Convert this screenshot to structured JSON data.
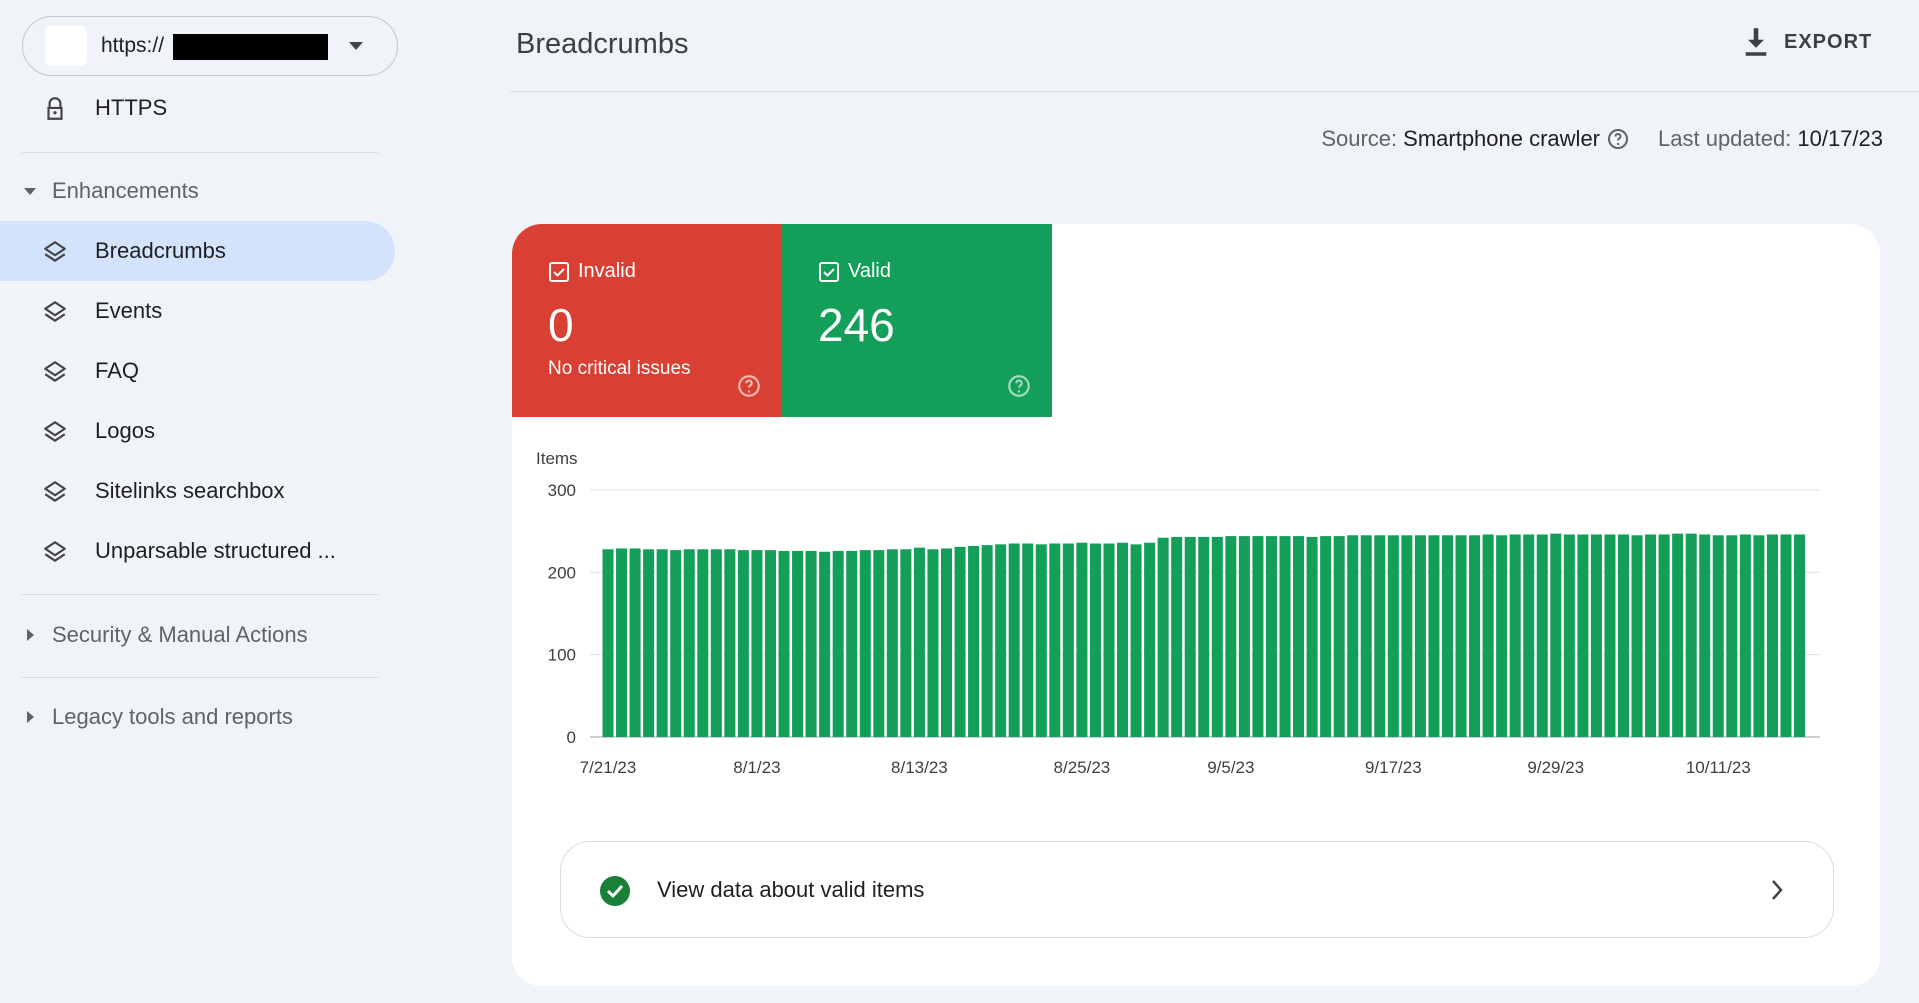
{
  "site_selector": {
    "url_prefix": "https://"
  },
  "sidebar": {
    "top_item": "HTTPS",
    "sections": [
      {
        "title": "Enhancements",
        "items": [
          "Breadcrumbs",
          "Events",
          "FAQ",
          "Logos",
          "Sitelinks searchbox",
          "Unparsable structured ..."
        ]
      },
      {
        "title": "Security & Manual Actions"
      },
      {
        "title": "Legacy tools and reports"
      }
    ]
  },
  "header": {
    "title": "Breadcrumbs",
    "export": "EXPORT"
  },
  "meta": {
    "source_label": "Source:",
    "source_value": "Smartphone crawler",
    "updated_label": "Last updated:",
    "updated_value": "10/17/23"
  },
  "summary": {
    "invalid": {
      "label": "Invalid",
      "count": 0,
      "note": "No critical issues"
    },
    "valid": {
      "label": "Valid",
      "count": 246
    }
  },
  "link": {
    "text": "View data about valid items"
  },
  "chart_data": {
    "type": "bar",
    "ylabel": "Items",
    "color": "#139e5a",
    "grid": true,
    "ylim": [
      0,
      300
    ],
    "yticks": [
      0,
      100,
      200,
      300
    ],
    "categories": [
      "7/21/23",
      null,
      null,
      null,
      null,
      null,
      null,
      null,
      null,
      null,
      null,
      "8/1/23",
      null,
      null,
      null,
      null,
      null,
      null,
      null,
      null,
      null,
      null,
      null,
      "8/13/23",
      null,
      null,
      null,
      null,
      null,
      null,
      null,
      null,
      null,
      null,
      null,
      "8/25/23",
      null,
      null,
      null,
      null,
      null,
      null,
      null,
      null,
      null,
      null,
      "9/5/23",
      null,
      null,
      null,
      null,
      null,
      null,
      null,
      null,
      null,
      null,
      null,
      "9/17/23",
      null,
      null,
      null,
      null,
      null,
      null,
      null,
      null,
      null,
      null,
      null,
      "9/29/23",
      null,
      null,
      null,
      null,
      null,
      null,
      null,
      null,
      null,
      null,
      null,
      "10/11/23",
      null,
      null,
      null,
      null,
      null,
      null
    ],
    "values": [
      228,
      229,
      229,
      228,
      228,
      227,
      228,
      228,
      228,
      228,
      227,
      227,
      227,
      226,
      226,
      226,
      225,
      226,
      226,
      227,
      227,
      228,
      228,
      230,
      228,
      229,
      231,
      232,
      233,
      234,
      235,
      235,
      234,
      235,
      235,
      236,
      235,
      235,
      236,
      234,
      236,
      242,
      243,
      243,
      243,
      243,
      244,
      244,
      244,
      244,
      244,
      244,
      243,
      244,
      244,
      245,
      245,
      245,
      245,
      245,
      245,
      245,
      245,
      245,
      245,
      246,
      245,
      246,
      246,
      246,
      247,
      246,
      246,
      246,
      246,
      246,
      245,
      246,
      246,
      247,
      247,
      246,
      245,
      245,
      246,
      245,
      246,
      246,
      246
    ]
  }
}
